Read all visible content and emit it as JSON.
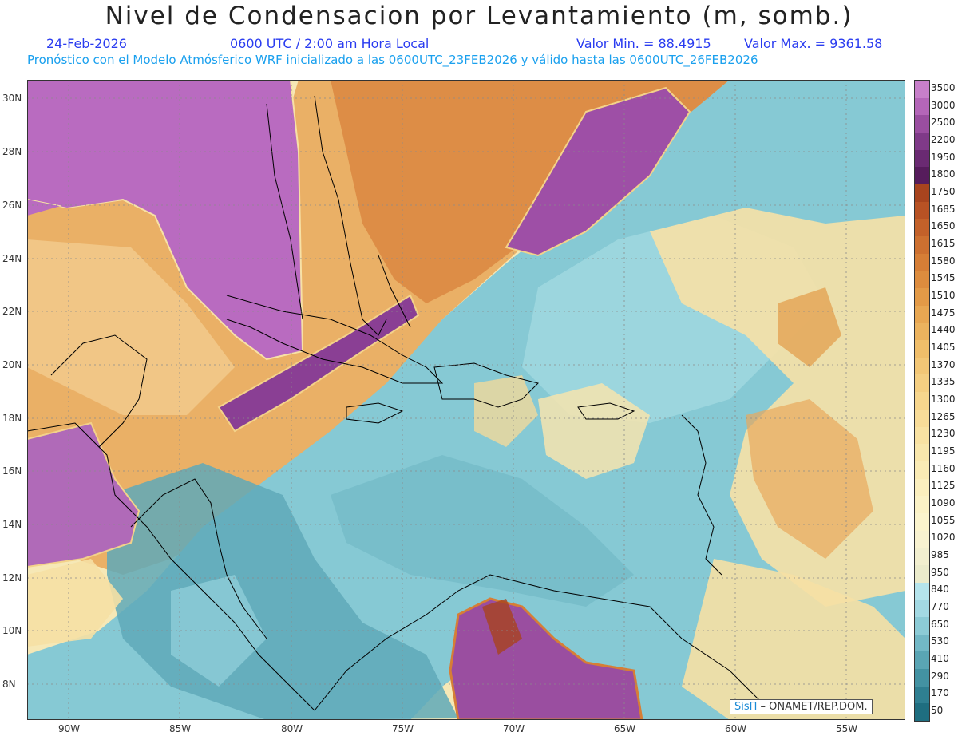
{
  "header": {
    "title": "Nivel de Condensacion por Levantamiento (m, somb.)",
    "date": "24-Feb-2026",
    "time": "0600 UTC / 2:00 am Hora Local",
    "min_label": "Valor Min. = 88.4915",
    "max_label": "Valor Max. = 9361.58",
    "model_line": "Pronóstico con el Modelo Atmósferico WRF inicializado a las 0600UTC_23FEB2026 y válido hasta las  0600UTC_26FEB2026"
  },
  "lat_labels": [
    "30N",
    "28N",
    "26N",
    "24N",
    "22N",
    "20N",
    "18N",
    "16N",
    "14N",
    "12N",
    "10N",
    "8N"
  ],
  "lon_labels": [
    "90W",
    "85W",
    "80W",
    "75W",
    "70W",
    "65W",
    "60W",
    "55W"
  ],
  "legend": {
    "labels": [
      "3500",
      "3000",
      "2500",
      "2200",
      "1950",
      "1800",
      "1750",
      "1685",
      "1650",
      "1615",
      "1580",
      "1545",
      "1510",
      "1475",
      "1440",
      "1405",
      "1370",
      "1335",
      "1300",
      "1265",
      "1230",
      "1195",
      "1160",
      "1125",
      "1090",
      "1055",
      "1020",
      "985",
      "950",
      "840",
      "770",
      "650",
      "530",
      "410",
      "290",
      "170",
      "50"
    ],
    "colors": [
      "#c77fc9",
      "#b466b8",
      "#9a4ea0",
      "#7f3a88",
      "#6a2a72",
      "#561c5c",
      "#a8441e",
      "#b85224",
      "#c3612a",
      "#cd7030",
      "#d67e36",
      "#dd8c3e",
      "#e39a47",
      "#e8a752",
      "#ecb35e",
      "#f0be6a",
      "#f3c776",
      "#f5cf82",
      "#f7d68d",
      "#f8dc98",
      "#f9e2a2",
      "#f9e7ac",
      "#faebb5",
      "#fbefbe",
      "#fbf2c6",
      "#fbf4cd",
      "#f8f2d0",
      "#f2efcf",
      "#ebebcb",
      "#b5e4ec",
      "#a3d9e3",
      "#8ccbd6",
      "#72b8c6",
      "#5aa5b4",
      "#4392a2",
      "#2f7f91",
      "#1f6e80"
    ]
  },
  "credit": {
    "brand": "SisΠ",
    "text": " – ONAMET/REP.DOM."
  }
}
